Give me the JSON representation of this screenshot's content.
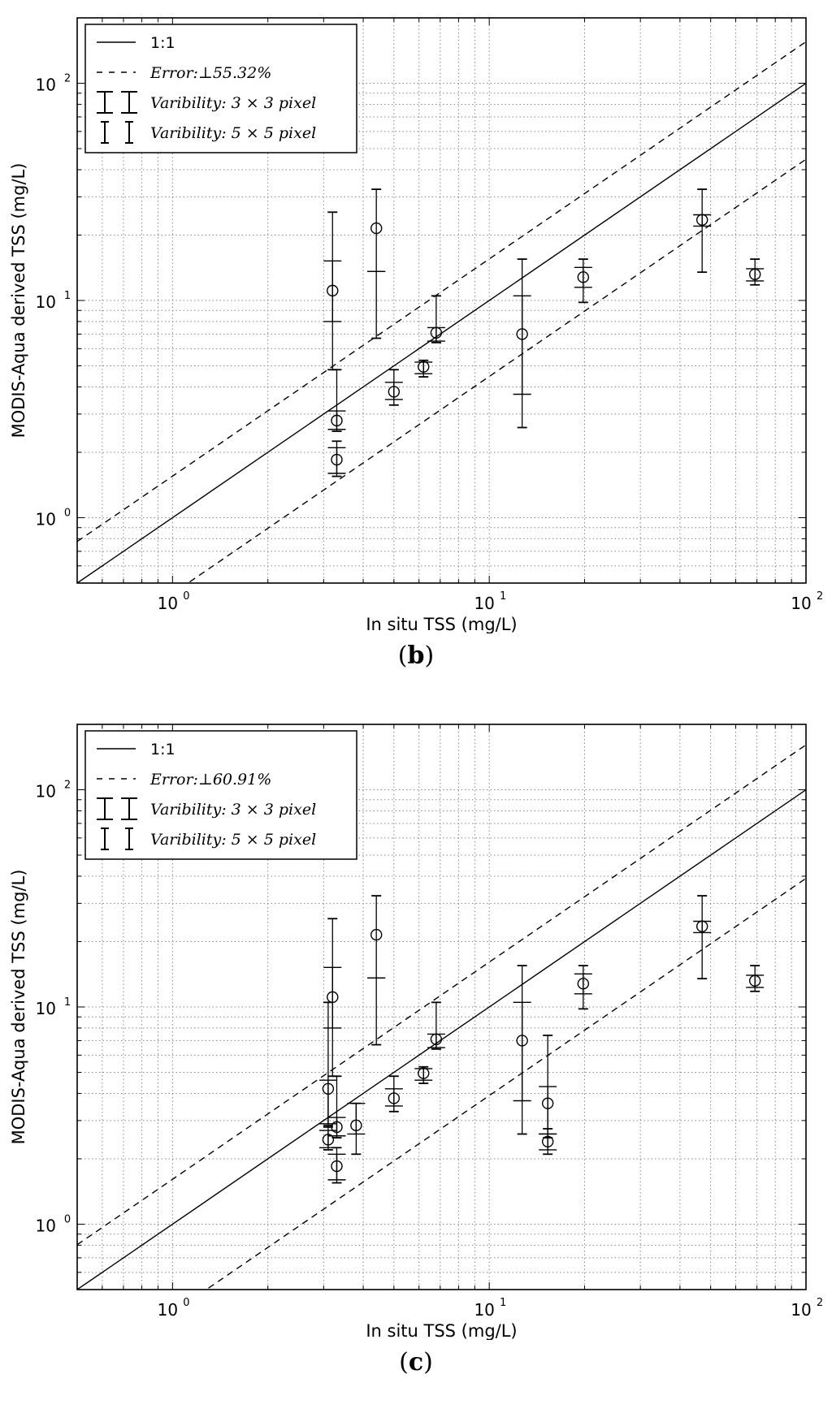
{
  "chart_data": [
    {
      "panel": "b",
      "type": "scatter",
      "xlabel": "In situ TSS (mg/L)",
      "ylabel": "MODIS-Aqua derived TSS (mg/L)",
      "xscale": "log",
      "yscale": "log",
      "xlim": [
        0.5,
        100
      ],
      "ylim": [
        0.5,
        200
      ],
      "grid": true,
      "legend_position": "top-left",
      "x_tick_labels": [
        "10",
        "10",
        "10"
      ],
      "x_tick_exponents": [
        "0",
        "1",
        "2"
      ],
      "y_tick_labels": [
        "10",
        "10",
        "10"
      ],
      "y_tick_exponents": [
        "0",
        "1",
        "2"
      ],
      "legend": [
        {
          "style": "solid",
          "label": "1:1"
        },
        {
          "style": "dashed",
          "label": "Error:⊥55.32%"
        },
        {
          "style": "errorbar-thick",
          "label": "Varibility: 3 × 3 pixel"
        },
        {
          "style": "errorbar-thin",
          "label": "Varibility: 5 × 5 pixel"
        }
      ],
      "reference_lines": [
        {
          "style": "solid",
          "factor": 1.0
        },
        {
          "style": "dashed",
          "factor": 1.5532
        },
        {
          "style": "dashed",
          "factor": 0.4468
        }
      ],
      "points": [
        {
          "x": 3.2,
          "y": 11.1,
          "e3": [
            8.0,
            15.2
          ],
          "e5": [
            4.8,
            25.5
          ]
        },
        {
          "x": 3.3,
          "y": 2.8,
          "e3": [
            2.55,
            3.1
          ],
          "e5": [
            2.5,
            4.8
          ]
        },
        {
          "x": 3.3,
          "y": 1.85,
          "e3": [
            1.6,
            2.1
          ],
          "e5": [
            1.55,
            2.25
          ]
        },
        {
          "x": 4.4,
          "y": 21.5,
          "e3": [
            13.6,
            13.6
          ],
          "e5": [
            6.7,
            32.5
          ]
        },
        {
          "x": 5.0,
          "y": 3.8,
          "e3": [
            3.5,
            4.2
          ],
          "e5": [
            3.3,
            4.8
          ]
        },
        {
          "x": 6.2,
          "y": 4.95,
          "e3": [
            4.6,
            5.2
          ],
          "e5": [
            4.45,
            5.3
          ]
        },
        {
          "x": 6.8,
          "y": 7.1,
          "e3": [
            6.5,
            7.5
          ],
          "e5": [
            6.4,
            10.5
          ]
        },
        {
          "x": 12.7,
          "y": 7.0,
          "e3": [
            3.7,
            10.5
          ],
          "e5": [
            2.6,
            15.5
          ]
        },
        {
          "x": 19.8,
          "y": 12.8,
          "e3": [
            11.5,
            14.2
          ],
          "e5": [
            9.8,
            15.5
          ]
        },
        {
          "x": 47.0,
          "y": 23.5,
          "e3": [
            22.0,
            24.8
          ],
          "e5": [
            13.5,
            32.5
          ]
        },
        {
          "x": 69.0,
          "y": 13.2,
          "e3": [
            12.3,
            14.0
          ],
          "e5": [
            11.8,
            15.5
          ]
        }
      ]
    },
    {
      "panel": "c",
      "type": "scatter",
      "xlabel": "In situ TSS (mg/L)",
      "ylabel": "MODIS-Aqua derived TSS (mg/L)",
      "xscale": "log",
      "yscale": "log",
      "xlim": [
        0.5,
        100
      ],
      "ylim": [
        0.5,
        200
      ],
      "grid": true,
      "legend_position": "top-left",
      "x_tick_labels": [
        "10",
        "10",
        "10"
      ],
      "x_tick_exponents": [
        "0",
        "1",
        "2"
      ],
      "y_tick_labels": [
        "10",
        "10",
        "10"
      ],
      "y_tick_exponents": [
        "0",
        "1",
        "2"
      ],
      "legend": [
        {
          "style": "solid",
          "label": "1:1"
        },
        {
          "style": "dashed",
          "label": "Error:⊥60.91%"
        },
        {
          "style": "errorbar-thick",
          "label": "Varibility: 3 × 3 pixel"
        },
        {
          "style": "errorbar-thin",
          "label": "Varibility: 5 × 5 pixel"
        }
      ],
      "reference_lines": [
        {
          "style": "solid",
          "factor": 1.0
        },
        {
          "style": "dashed",
          "factor": 1.6091
        },
        {
          "style": "dashed",
          "factor": 0.3909
        }
      ],
      "points": [
        {
          "x": 3.2,
          "y": 11.1,
          "e3": [
            8.0,
            15.2
          ],
          "e5": [
            4.8,
            25.5
          ]
        },
        {
          "x": 3.1,
          "y": 4.2,
          "e3": [
            2.9,
            4.6
          ],
          "e5": [
            2.8,
            10.5
          ]
        },
        {
          "x": 3.1,
          "y": 2.45,
          "e3": [
            2.25,
            2.7
          ],
          "e5": [
            2.2,
            2.85
          ]
        },
        {
          "x": 3.3,
          "y": 2.8,
          "e3": [
            2.55,
            3.1
          ],
          "e5": [
            2.5,
            4.8
          ]
        },
        {
          "x": 3.3,
          "y": 1.85,
          "e3": [
            1.6,
            2.1
          ],
          "e5": [
            1.55,
            2.25
          ]
        },
        {
          "x": 3.8,
          "y": 2.85,
          "e3": [
            2.6,
            3.6
          ],
          "e5": [
            2.1,
            3.6
          ]
        },
        {
          "x": 4.4,
          "y": 21.5,
          "e3": [
            13.6,
            13.6
          ],
          "e5": [
            6.7,
            32.5
          ]
        },
        {
          "x": 5.0,
          "y": 3.8,
          "e3": [
            3.5,
            4.2
          ],
          "e5": [
            3.3,
            4.8
          ]
        },
        {
          "x": 6.2,
          "y": 4.95,
          "e3": [
            4.6,
            5.2
          ],
          "e5": [
            4.45,
            5.3
          ]
        },
        {
          "x": 6.8,
          "y": 7.1,
          "e3": [
            6.5,
            7.5
          ],
          "e5": [
            6.4,
            10.5
          ]
        },
        {
          "x": 12.7,
          "y": 7.0,
          "e3": [
            3.7,
            10.5
          ],
          "e5": [
            2.6,
            15.5
          ]
        },
        {
          "x": 15.3,
          "y": 3.6,
          "e3": [
            2.6,
            4.3
          ],
          "e5": [
            2.5,
            7.4
          ]
        },
        {
          "x": 15.3,
          "y": 2.4,
          "e3": [
            2.2,
            2.6
          ],
          "e5": [
            2.1,
            2.75
          ]
        },
        {
          "x": 19.8,
          "y": 12.8,
          "e3": [
            11.5,
            14.2
          ],
          "e5": [
            9.8,
            15.5
          ]
        },
        {
          "x": 47.0,
          "y": 23.5,
          "e3": [
            22.0,
            24.8
          ],
          "e5": [
            13.5,
            32.5
          ]
        },
        {
          "x": 69.0,
          "y": 13.2,
          "e3": [
            12.3,
            14.0
          ],
          "e5": [
            11.8,
            15.5
          ]
        }
      ]
    }
  ],
  "captions": {
    "b": {
      "open": "(",
      "letter": "b",
      "close": ")"
    },
    "c": {
      "open": "(",
      "letter": "c",
      "close": ")"
    }
  }
}
